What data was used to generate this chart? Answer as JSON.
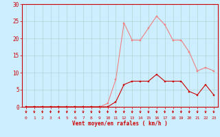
{
  "x": [
    0,
    1,
    2,
    3,
    4,
    5,
    6,
    7,
    8,
    9,
    10,
    11,
    12,
    13,
    14,
    15,
    16,
    17,
    18,
    19,
    20,
    21,
    22,
    23
  ],
  "rafales": [
    0,
    0,
    0,
    0,
    0,
    0,
    0,
    0,
    0,
    0,
    1,
    8,
    24.5,
    19.5,
    19.5,
    23,
    26.5,
    24,
    19.5,
    19.5,
    16,
    10.5,
    11.5,
    10.5
  ],
  "moyen": [
    0,
    0,
    0,
    0,
    0,
    0,
    0,
    0,
    0,
    0,
    0,
    1.5,
    6.5,
    7.5,
    7.5,
    7.5,
    9.5,
    7.5,
    7.5,
    7.5,
    4.5,
    3.5,
    6.5,
    3.5
  ],
  "color_rafales": "#f08080",
  "color_moyen": "#cc0000",
  "bg_color": "#cceeff",
  "grid_color": "#aacccc",
  "axis_color": "#cc0000",
  "xlabel": "Vent moyen/en rafales ( km/h )",
  "ylim": [
    0,
    30
  ],
  "yticks": [
    0,
    5,
    10,
    15,
    20,
    25,
    30
  ],
  "xticks": [
    0,
    1,
    2,
    3,
    4,
    5,
    6,
    7,
    8,
    9,
    10,
    11,
    12,
    13,
    14,
    15,
    16,
    17,
    18,
    19,
    20,
    21,
    22,
    23
  ],
  "ytick_labels": [
    "0",
    "5",
    "10",
    "15",
    "20",
    "25",
    "30"
  ],
  "xtick_labels": [
    "0",
    "1",
    "2",
    "3",
    "4",
    "5",
    "6",
    "7",
    "8",
    "9",
    "10",
    "11",
    "12",
    "13",
    "14",
    "15",
    "16",
    "17",
    "18",
    "19",
    "20",
    "21",
    "22",
    "23"
  ]
}
